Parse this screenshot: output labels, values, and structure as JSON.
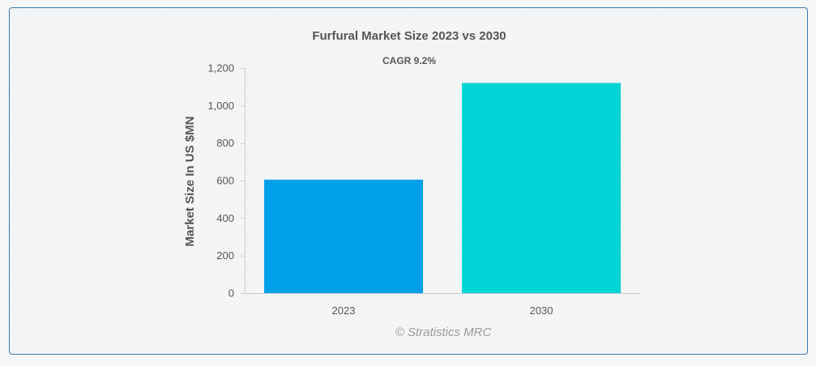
{
  "chart_data": {
    "type": "bar",
    "title": "Furfural Market Size 2023 vs 2030",
    "subtitle": "CAGR 9.2%",
    "categories": [
      "2023",
      "2030"
    ],
    "values": [
      605,
      1120
    ],
    "ylabel": "Market Size In US $MN",
    "xlabel": "",
    "ylim": [
      0,
      1200
    ],
    "yticks": [
      0,
      200,
      400,
      600,
      800,
      1000,
      1200
    ],
    "ytick_labels": [
      "0",
      "200",
      "400",
      "600",
      "800",
      "1,000",
      "1,200"
    ],
    "bar_colors": [
      "#00a0e9",
      "#00d4d4"
    ],
    "grid": false
  },
  "watermark": "© Stratistics MRC",
  "colors": {
    "border": "#3a78b8",
    "text": "#555555",
    "axis": "#cccccc"
  }
}
